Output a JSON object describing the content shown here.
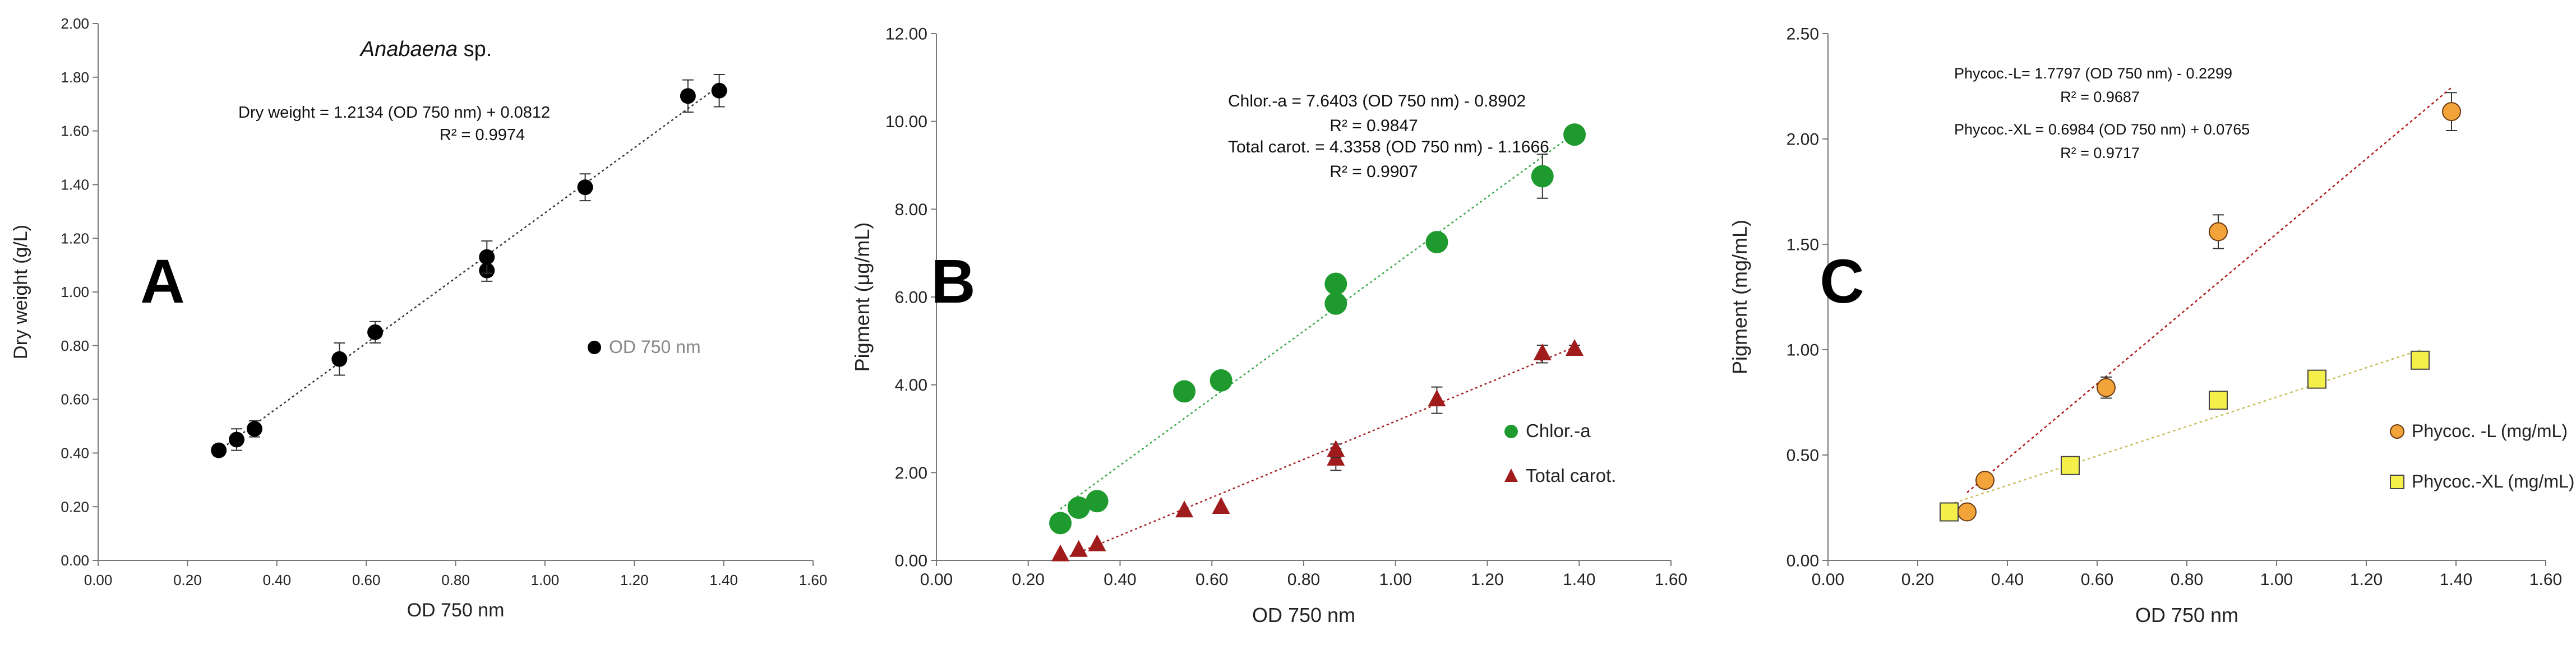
{
  "chart_data": [
    {
      "type": "scatter",
      "panel_label": "A",
      "title": "Anabaena sp.",
      "title_italic": "Anabaena",
      "title_rest": " sp.",
      "xlabel": "OD 750 nm",
      "ylabel": "Dry weight (g/L)",
      "xlim": [
        0,
        1.6
      ],
      "ylim": [
        0,
        2.0
      ],
      "x_ticks": [
        "0.00",
        "0.20",
        "0.40",
        "0.60",
        "0.80",
        "1.00",
        "1.20",
        "1.40",
        "1.60"
      ],
      "y_ticks": [
        "0.00",
        "0.20",
        "0.40",
        "0.60",
        "0.80",
        "1.00",
        "1.20",
        "1.40",
        "1.60",
        "1.80",
        "2.00"
      ],
      "grid": false,
      "legend_position": "middle-right",
      "equations": [
        {
          "line1": "Dry weight  = 1.2134 (OD 750 nm) + 0.0812",
          "line2": "R² = 0.9974"
        }
      ],
      "series": [
        {
          "name": "OD 750 nm",
          "color": "#000000",
          "marker": "circle",
          "points": [
            {
              "x": 0.27,
              "y": 0.41,
              "err": 0.02
            },
            {
              "x": 0.31,
              "y": 0.45,
              "err": 0.04
            },
            {
              "x": 0.35,
              "y": 0.49,
              "err": 0.03
            },
            {
              "x": 0.54,
              "y": 0.75,
              "err": 0.06
            },
            {
              "x": 0.62,
              "y": 0.85,
              "err": 0.04
            },
            {
              "x": 0.87,
              "y": 1.08,
              "err": 0.04
            },
            {
              "x": 0.87,
              "y": 1.13,
              "err": 0.06
            },
            {
              "x": 1.09,
              "y": 1.39,
              "err": 0.05
            },
            {
              "x": 1.32,
              "y": 1.73,
              "err": 0.06
            },
            {
              "x": 1.39,
              "y": 1.75,
              "err": 0.06
            }
          ],
          "trendline": {
            "slope": 1.2134,
            "intercept": 0.0812,
            "color": "#333333",
            "x_range": [
              0.27,
              1.39
            ]
          }
        }
      ]
    },
    {
      "type": "scatter",
      "panel_label": "B",
      "xlabel": "OD 750 nm",
      "ylabel": "Pigment (μg/mL)",
      "xlim": [
        0,
        1.6
      ],
      "ylim": [
        0,
        12
      ],
      "x_ticks": [
        "0.00",
        "0.20",
        "0.40",
        "0.60",
        "0.80",
        "1.00",
        "1.20",
        "1.40",
        "1.60"
      ],
      "y_ticks": [
        "0.00",
        "2.00",
        "4.00",
        "6.00",
        "8.00",
        "10.00",
        "12.00"
      ],
      "grid": false,
      "legend_position": "bottom-right",
      "equations": [
        {
          "line1": "Chlor.-a = 7.6403 (OD 750 nm) - 0.8902",
          "line2": "R² = 0.9847"
        },
        {
          "line1": "Total carot. = 4.3358 (OD 750 nm) - 1.1666",
          "line2": "R² = 0.9907"
        }
      ],
      "series": [
        {
          "name": "Chlor.-a",
          "color": "#1e9a2e",
          "marker": "circle",
          "points": [
            {
              "x": 0.27,
              "y": 0.85,
              "err": 0
            },
            {
              "x": 0.31,
              "y": 1.2,
              "err": 0
            },
            {
              "x": 0.35,
              "y": 1.35,
              "err": 0
            },
            {
              "x": 0.54,
              "y": 3.85,
              "err": 0
            },
            {
              "x": 0.62,
              "y": 4.1,
              "err": 0
            },
            {
              "x": 0.87,
              "y": 5.85,
              "err": 0
            },
            {
              "x": 0.87,
              "y": 6.3,
              "err": 0
            },
            {
              "x": 1.09,
              "y": 7.25,
              "err": 0
            },
            {
              "x": 1.32,
              "y": 8.75,
              "err": 0.5
            },
            {
              "x": 1.39,
              "y": 9.7,
              "err": 0
            }
          ],
          "trendline": {
            "slope": 7.6403,
            "intercept": -0.8902,
            "color": "#3aa64a",
            "x_range": [
              0.27,
              1.39
            ]
          }
        },
        {
          "name": "Total carot.",
          "color": "#a01c1c",
          "marker": "triangle",
          "points": [
            {
              "x": 0.27,
              "y": 0.12,
              "err": 0
            },
            {
              "x": 0.31,
              "y": 0.22,
              "err": 0
            },
            {
              "x": 0.35,
              "y": 0.35,
              "err": 0
            },
            {
              "x": 0.54,
              "y": 1.12,
              "err": 0
            },
            {
              "x": 0.62,
              "y": 1.2,
              "err": 0
            },
            {
              "x": 0.87,
              "y": 2.3,
              "err": 0.25
            },
            {
              "x": 0.87,
              "y": 2.5,
              "err": 0.15
            },
            {
              "x": 1.09,
              "y": 3.65,
              "err": 0.3
            },
            {
              "x": 1.32,
              "y": 4.7,
              "err": 0.2
            },
            {
              "x": 1.39,
              "y": 4.8,
              "err": 0.1
            }
          ],
          "trendline": {
            "slope": 4.3358,
            "intercept": -1.1666,
            "color": "#a01c1c",
            "x_range": [
              0.27,
              1.39
            ]
          }
        }
      ]
    },
    {
      "type": "scatter",
      "panel_label": "C",
      "xlabel": "OD 750 nm",
      "ylabel": "Pigment (mg/mL)",
      "xlim": [
        0,
        1.6
      ],
      "ylim": [
        0,
        2.5
      ],
      "x_ticks": [
        "0.00",
        "0.20",
        "0.40",
        "0.60",
        "0.80",
        "1.00",
        "1.20",
        "1.40",
        "1.60"
      ],
      "y_ticks": [
        "0.00",
        "0.50",
        "1.00",
        "1.50",
        "2.00",
        "2.50"
      ],
      "grid": false,
      "legend_position": "bottom-right",
      "equations": [
        {
          "line1": "Phycoc.-L= 1.7797 (OD 750 nm) - 0.2299",
          "line2": "R² = 0.9687"
        },
        {
          "line1": "Phycoc.-XL = 0.6984 (OD 750 nm) + 0.0765",
          "line2": "R² = 0.9717"
        }
      ],
      "series": [
        {
          "name": "Phycoc. -L (mg/mL)",
          "color": "#f2a33a",
          "marker": "circle",
          "points": [
            {
              "x": 0.31,
              "y": 0.23,
              "err": 0
            },
            {
              "x": 0.35,
              "y": 0.38,
              "err": 0
            },
            {
              "x": 0.62,
              "y": 0.82,
              "err": 0.05
            },
            {
              "x": 0.87,
              "y": 1.56,
              "err": 0.08
            },
            {
              "x": 1.39,
              "y": 2.13,
              "err": 0.09
            }
          ],
          "trendline": {
            "slope": 1.7797,
            "intercept": -0.2299,
            "color": "#b01818",
            "x_range": [
              0.31,
              1.39
            ]
          }
        },
        {
          "name": "Phycoc.-XL (mg/mL)",
          "color": "#f5ef4a",
          "marker": "square",
          "points": [
            {
              "x": 0.27,
              "y": 0.23,
              "err": 0
            },
            {
              "x": 0.54,
              "y": 0.45,
              "err": 0
            },
            {
              "x": 0.87,
              "y": 0.76,
              "err": 0
            },
            {
              "x": 1.09,
              "y": 0.86,
              "err": 0
            },
            {
              "x": 1.32,
              "y": 0.95,
              "err": 0
            }
          ],
          "trendline": {
            "slope": 0.6984,
            "intercept": 0.0765,
            "color": "#c9c060",
            "x_range": [
              0.27,
              1.32
            ]
          }
        }
      ]
    }
  ]
}
